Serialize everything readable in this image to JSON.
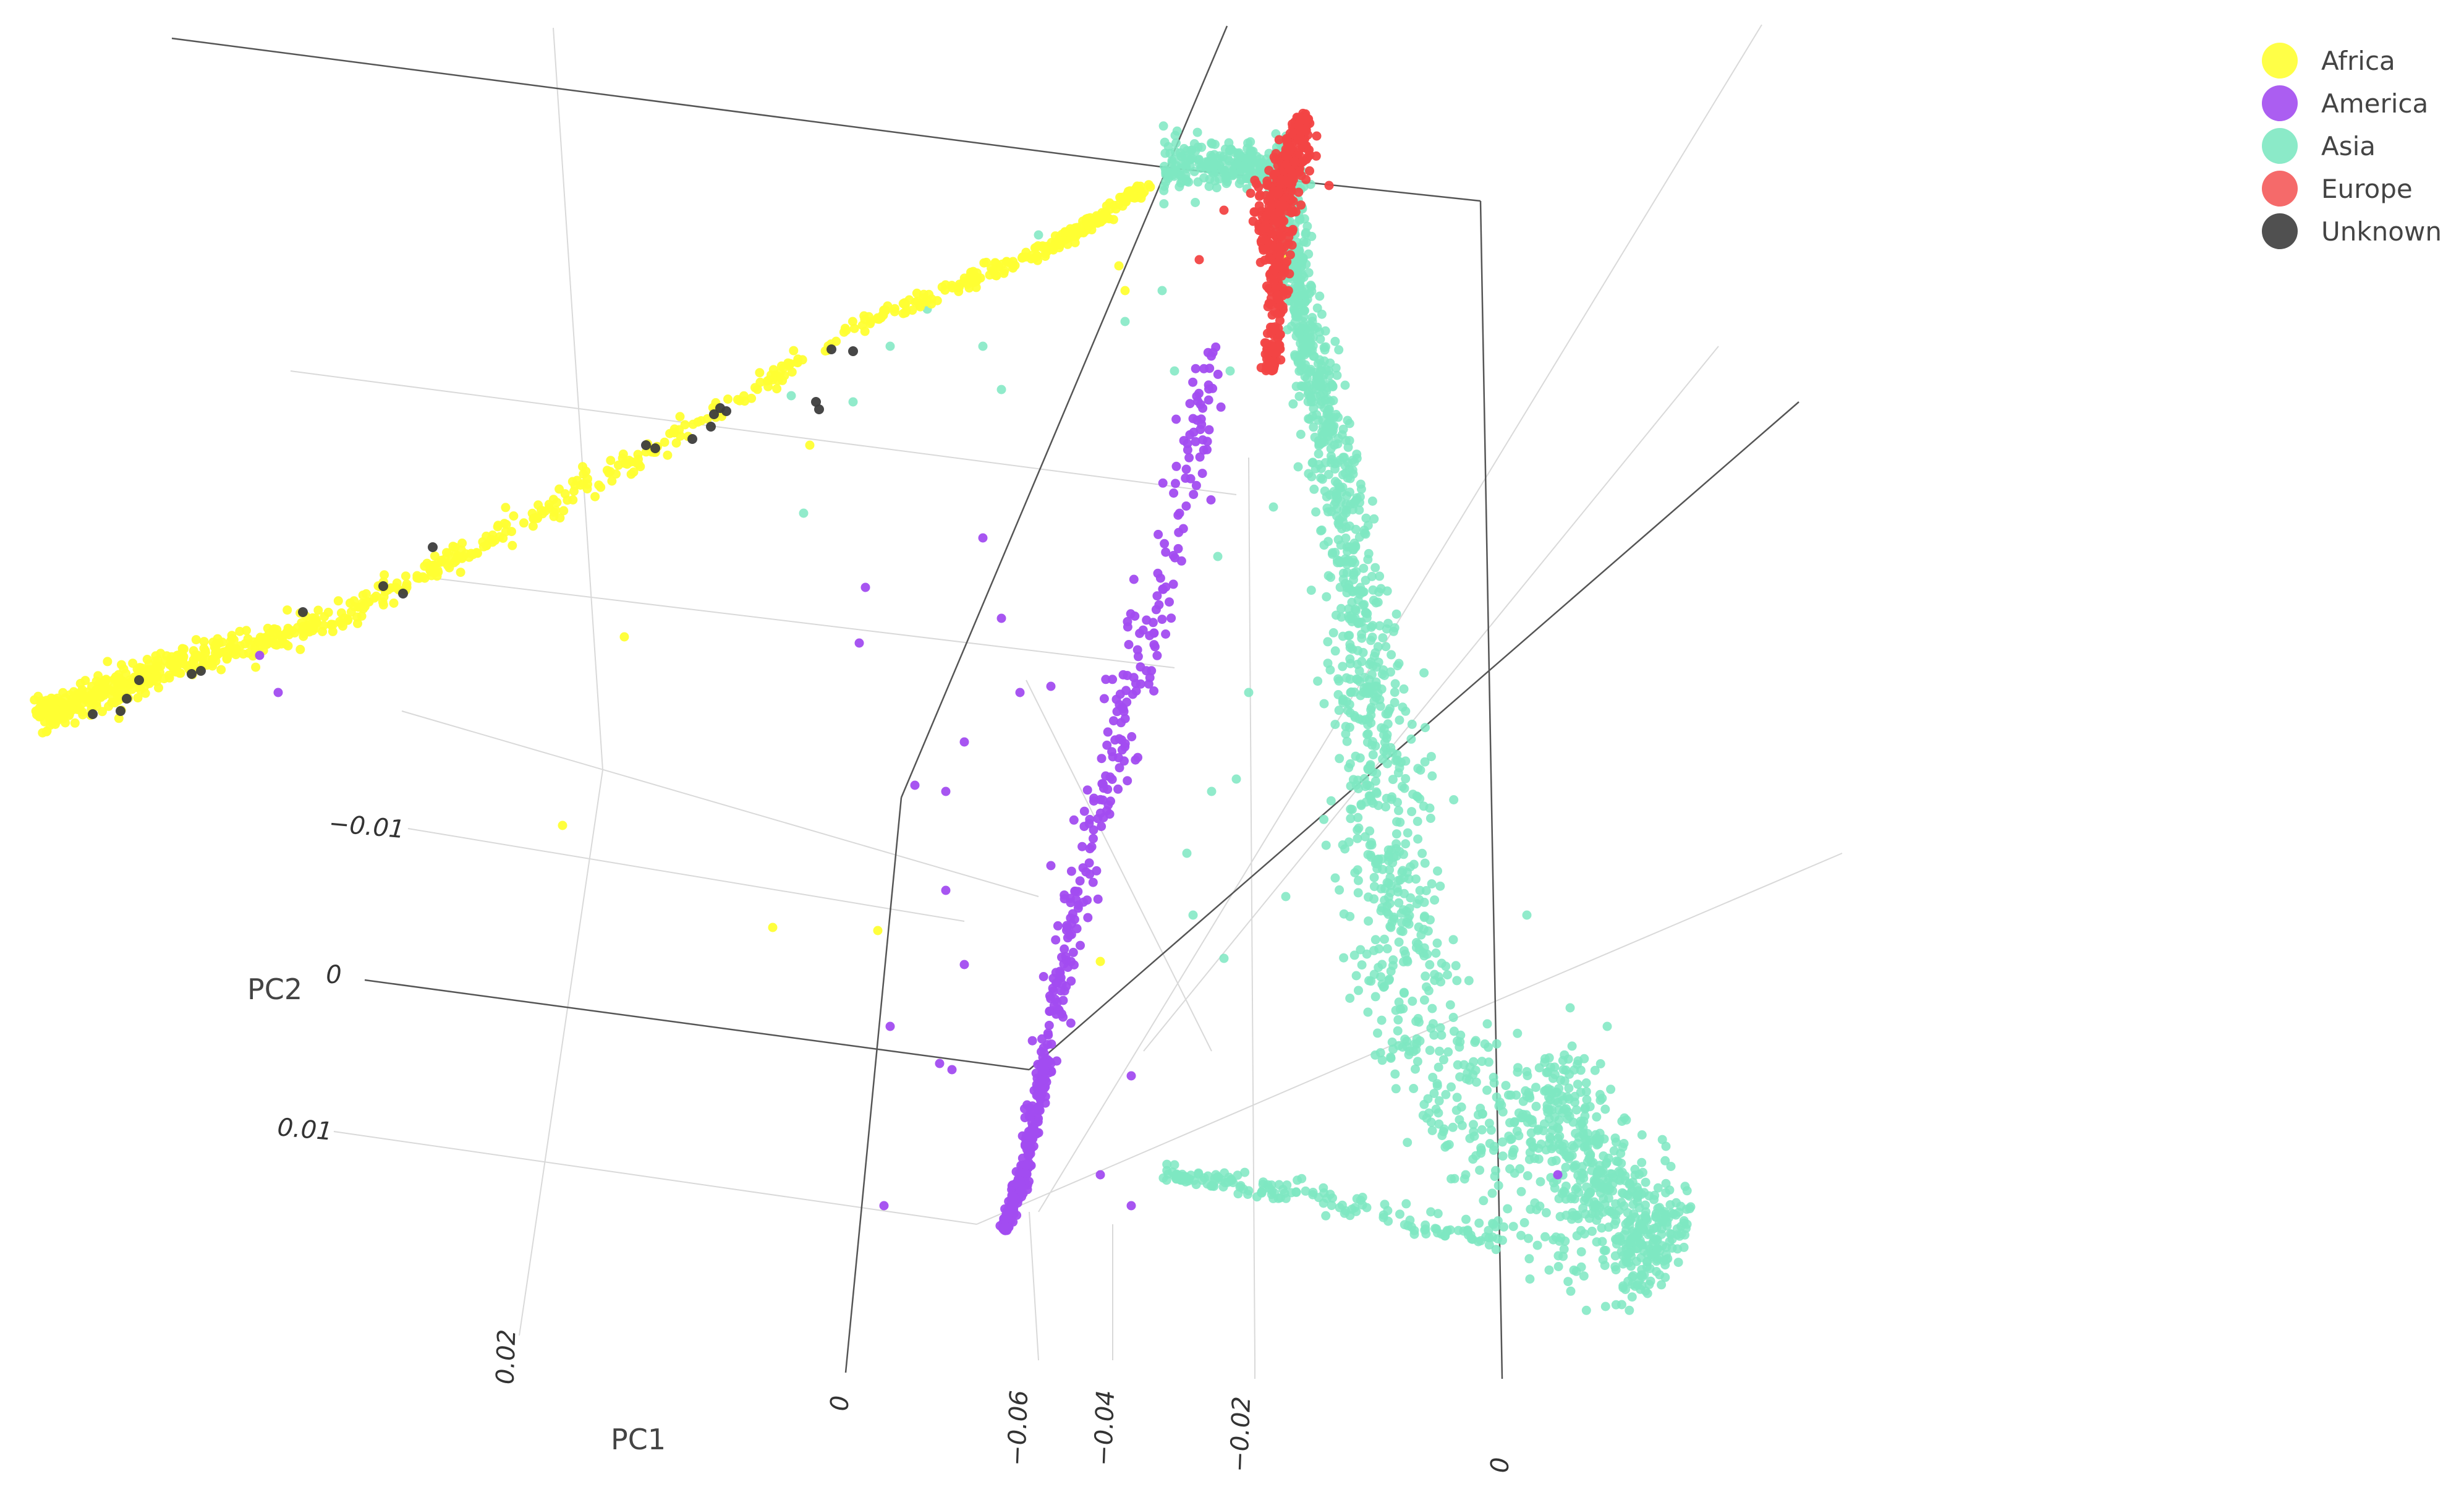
{
  "chart_data": {
    "type": "scatter",
    "dimensions": 3,
    "axes": {
      "pc1": {
        "title": "PC1",
        "ticks": [
          "0.02",
          "0"
        ]
      },
      "pc2": {
        "title": "PC2",
        "ticks": [
          "−0.01",
          "0",
          "0.01"
        ]
      },
      "pc3": {
        "title": "",
        "ticks": [
          "−0.06",
          "−0.04",
          "−0.02",
          "0"
        ]
      }
    },
    "grid": true,
    "legend_position": "top-right",
    "series": [
      {
        "name": "Africa",
        "color": "#ffff33"
      },
      {
        "name": "America",
        "color": "#a24cf0"
      },
      {
        "name": "Asia",
        "color": "#7ee8c2"
      },
      {
        "name": "Europe",
        "color": "#f24545"
      },
      {
        "name": "Unknown",
        "color": "#3d3d3d"
      }
    ]
  }
}
